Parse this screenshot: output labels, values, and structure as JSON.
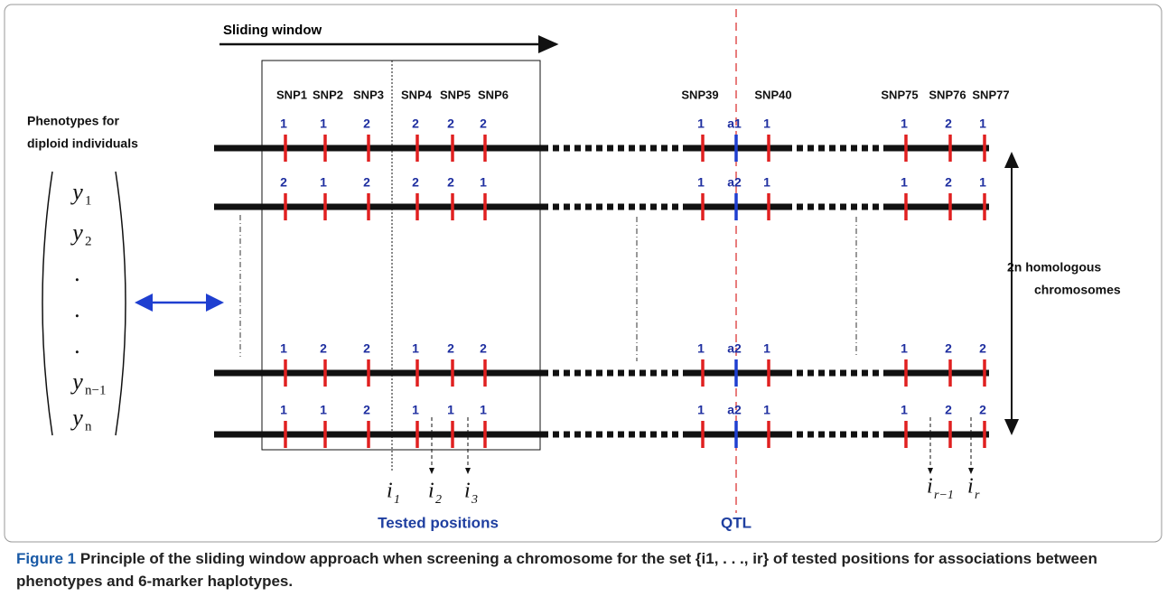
{
  "title": "Sliding window",
  "phenotypes_label": [
    "Phenotypes for",
    "diploid individuals"
  ],
  "vector": [
    {
      "symbol": "y",
      "sub": "1"
    },
    {
      "symbol": "y",
      "sub": "2"
    },
    {
      "symbol": "."
    },
    {
      "symbol": "."
    },
    {
      "symbol": "."
    },
    {
      "symbol": "y",
      "sub": "n−1"
    },
    {
      "symbol": "y",
      "sub": "n"
    }
  ],
  "snp_labels": [
    "SNP1",
    "SNP2",
    "SNP3",
    "SNP4",
    "SNP5",
    "SNP6",
    "SNP39",
    "SNP40",
    "SNP75",
    "SNP76",
    "SNP77"
  ],
  "chromosomes": [
    {
      "alleles": [
        "1",
        "1",
        "2",
        "2",
        "2",
        "2",
        "1",
        "a1",
        "1",
        "1",
        "2",
        "1"
      ]
    },
    {
      "alleles": [
        "2",
        "1",
        "2",
        "2",
        "2",
        "1",
        "1",
        "a2",
        "1",
        "1",
        "2",
        "1"
      ]
    },
    {
      "alleles": [
        "1",
        "2",
        "2",
        "1",
        "2",
        "2",
        "1",
        "a2",
        "1",
        "1",
        "2",
        "2"
      ]
    },
    {
      "alleles": [
        "1",
        "1",
        "2",
        "1",
        "1",
        "1",
        "1",
        "a2",
        "1",
        "1",
        "2",
        "2"
      ]
    }
  ],
  "right_label": [
    "2n homologous",
    "chromosomes"
  ],
  "positions": [
    {
      "symbol": "i",
      "sub": "1"
    },
    {
      "symbol": "i",
      "sub": "2"
    },
    {
      "symbol": "i",
      "sub": "3"
    },
    {
      "symbol": "i",
      "sub": "r−1"
    },
    {
      "symbol": "i",
      "sub": "r"
    }
  ],
  "tested_positions_label": "Tested positions",
  "qtl_label": "QTL",
  "caption": {
    "label": "Figure 1",
    "text": "Principle of the sliding window approach when screening a chromosome for the set {i1, . . ., ir} of tested positions for associations between phenotypes and 6-marker haplotypes."
  }
}
